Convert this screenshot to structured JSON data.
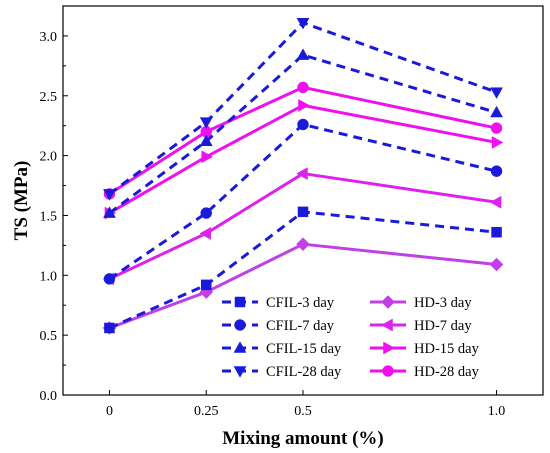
{
  "chart_data": {
    "type": "line",
    "xlabel": "Mixing amount (%)",
    "ylabel": "TS (MPa)",
    "x": [
      0,
      0.25,
      0.5,
      1.0
    ],
    "x_tick_labels": [
      "0",
      "0.25",
      "0.5",
      "1.0"
    ],
    "y_ticks": [
      "0.0",
      "0.5",
      "1.0",
      "1.5",
      "2.0",
      "2.5",
      "3.0"
    ],
    "xlim": [
      -0.12,
      1.12
    ],
    "ylim": [
      0,
      3.25
    ],
    "grid": false,
    "legend_position": "bottom-right",
    "series": [
      {
        "name": "CFIL-3 day",
        "values": [
          0.56,
          0.92,
          1.53,
          1.36
        ],
        "color": "#1a1adb",
        "style": "dashed",
        "marker": "square"
      },
      {
        "name": "CFIL-7 day",
        "values": [
          0.97,
          1.52,
          2.26,
          1.87
        ],
        "color": "#1a1adb",
        "style": "dashed",
        "marker": "circle"
      },
      {
        "name": "CFIL-15 day",
        "values": [
          1.52,
          2.12,
          2.84,
          2.36
        ],
        "color": "#1a1adb",
        "style": "dashed",
        "marker": "triangle-up"
      },
      {
        "name": "CFIL-28 day",
        "values": [
          1.68,
          2.28,
          3.11,
          2.53
        ],
        "color": "#1a1adb",
        "style": "dashed",
        "marker": "triangle-down"
      },
      {
        "name": "HD-3 day",
        "values": [
          0.56,
          0.86,
          1.26,
          1.09
        ],
        "color": "#c040e6",
        "style": "solid",
        "marker": "diamond"
      },
      {
        "name": "HD-7 day",
        "values": [
          0.97,
          1.35,
          1.85,
          1.61
        ],
        "color": "#dd22ee",
        "style": "solid",
        "marker": "triangle-left"
      },
      {
        "name": "HD-15 day",
        "values": [
          1.52,
          1.99,
          2.42,
          2.11
        ],
        "color": "#ee11ee",
        "style": "solid",
        "marker": "triangle-right"
      },
      {
        "name": "HD-28 day",
        "values": [
          1.68,
          2.2,
          2.57,
          2.23
        ],
        "color": "#ee11ee",
        "style": "solid",
        "marker": "circle"
      }
    ]
  }
}
